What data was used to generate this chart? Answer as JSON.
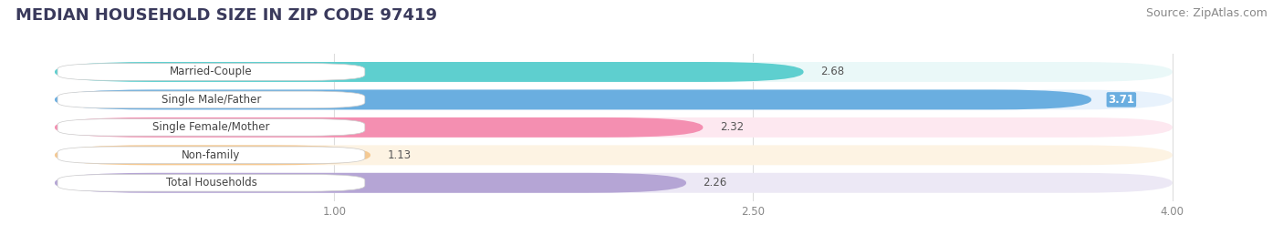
{
  "title": "MEDIAN HOUSEHOLD SIZE IN ZIP CODE 97419",
  "source": "Source: ZipAtlas.com",
  "categories": [
    "Married-Couple",
    "Single Male/Father",
    "Single Female/Mother",
    "Non-family",
    "Total Households"
  ],
  "values": [
    2.68,
    3.71,
    2.32,
    1.13,
    2.26
  ],
  "bar_colors": [
    "#5ecfcf",
    "#6aaee0",
    "#f48fb1",
    "#f5c992",
    "#b5a5d5"
  ],
  "bar_bg_colors": [
    "#eaf8f8",
    "#e8f2fc",
    "#fde8f0",
    "#fdf3e3",
    "#ece8f5"
  ],
  "xmin": 0.0,
  "xmax": 4.0,
  "xlim_left": -0.15,
  "xlim_right": 4.35,
  "xticks": [
    1.0,
    2.5,
    4.0
  ],
  "xticklabels": [
    "1.00",
    "2.50",
    "4.00"
  ],
  "title_fontsize": 13,
  "source_fontsize": 9,
  "label_fontsize": 8.5,
  "value_fontsize": 8.5,
  "background_color": "#ffffff"
}
